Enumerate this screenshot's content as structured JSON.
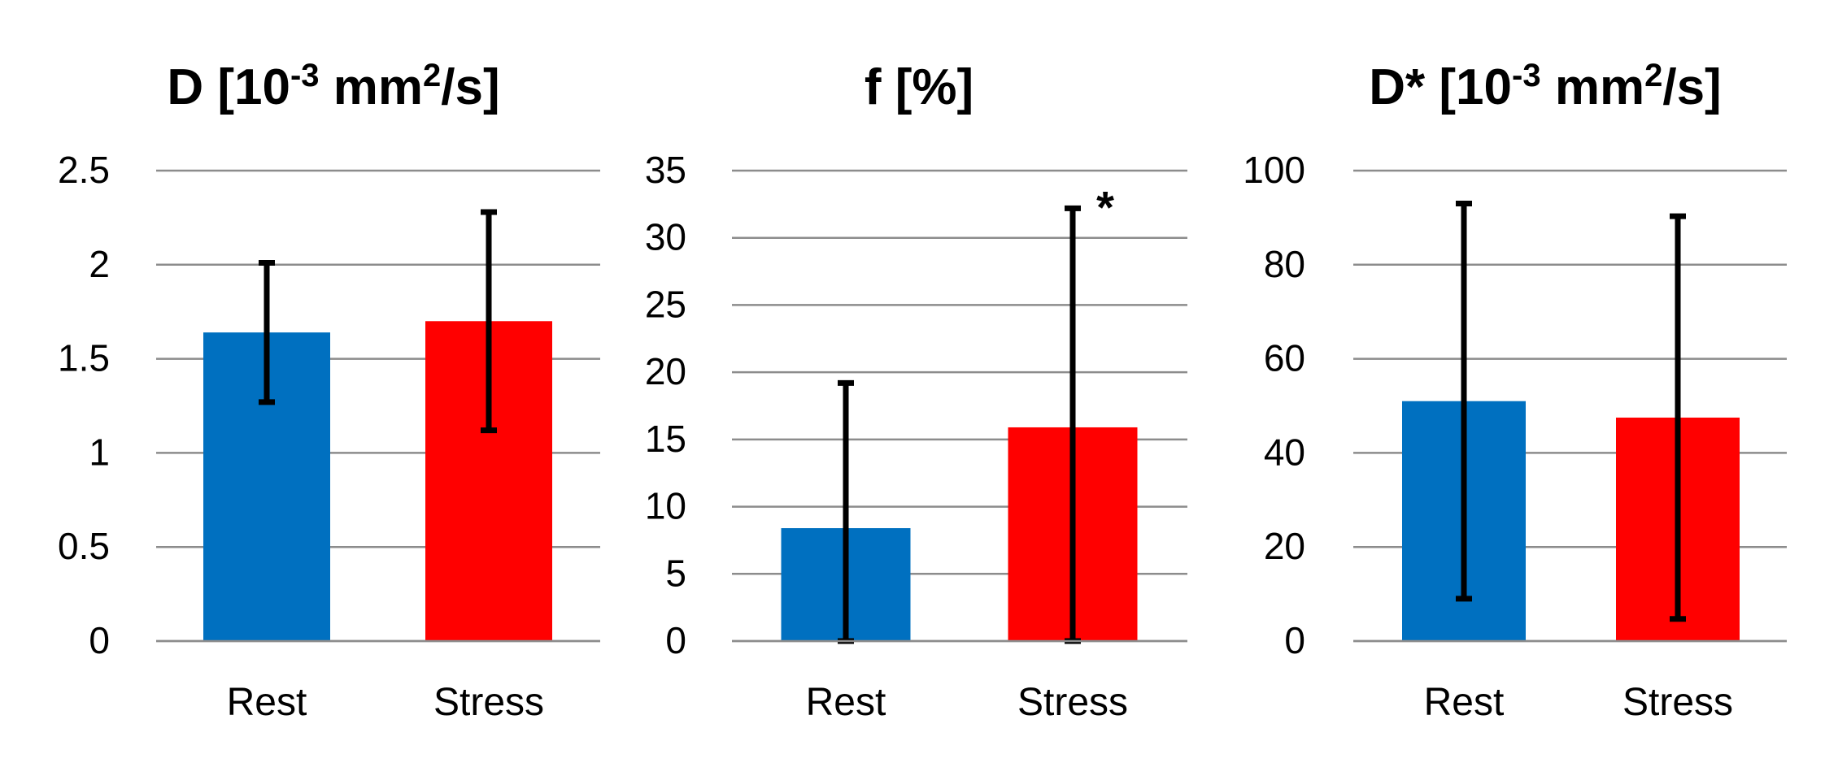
{
  "chart_data": [
    {
      "type": "bar",
      "title": {
        "base": "D [10",
        "sup1": "-3",
        "mid": " mm",
        "sup2": "2",
        "tail": "/s]"
      },
      "categories": [
        "Rest",
        "Stress"
      ],
      "values": [
        1.64,
        1.7
      ],
      "errors": [
        0.37,
        0.58
      ],
      "colors": [
        "#0070C0",
        "#FF0000"
      ],
      "ylim": [
        0,
        2.5
      ],
      "yticks": [
        "0",
        "0.5",
        "1",
        "1.5",
        "2",
        "2.5"
      ],
      "grid": true,
      "annotation": ""
    },
    {
      "type": "bar",
      "title": {
        "base": "f [%]",
        "sup1": "",
        "mid": "",
        "sup2": "",
        "tail": ""
      },
      "categories": [
        "Rest",
        "Stress"
      ],
      "values": [
        8.4,
        15.9
      ],
      "errors": [
        10.8,
        16.3
      ],
      "colors": [
        "#0070C0",
        "#FF0000"
      ],
      "ylim": [
        0,
        35
      ],
      "yticks": [
        "0",
        "5",
        "10",
        "15",
        "20",
        "25",
        "30",
        "35"
      ],
      "grid": true,
      "annotation": "*"
    },
    {
      "type": "bar",
      "title": {
        "base": "D* [10",
        "sup1": "-3",
        "mid": " mm",
        "sup2": "2",
        "tail": "/s]"
      },
      "categories": [
        "Rest",
        "Stress"
      ],
      "values": [
        51,
        47.5
      ],
      "errors": [
        42,
        42.8
      ],
      "colors": [
        "#0070C0",
        "#FF0000"
      ],
      "ylim": [
        0,
        100
      ],
      "yticks": [
        "0",
        "20",
        "40",
        "60",
        "80",
        "100"
      ],
      "grid": true,
      "annotation": ""
    }
  ]
}
